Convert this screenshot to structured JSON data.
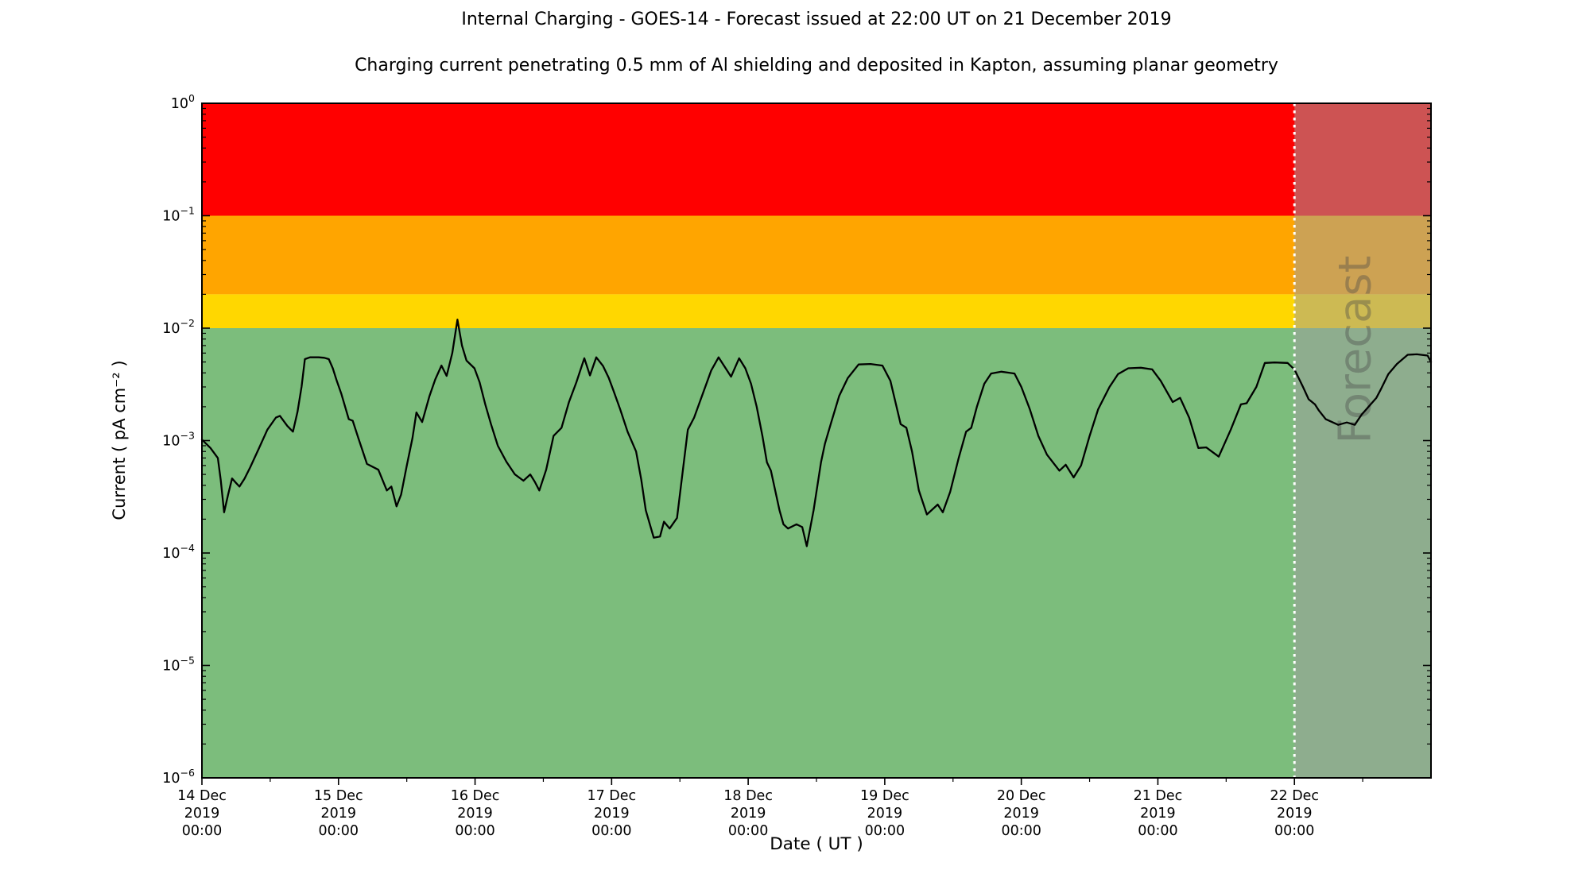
{
  "title": "Internal Charging - GOES-14 - Forecast issued at 22:00 UT on 21 December 2019",
  "subtitle": "Charging current penetrating 0.5 mm of Al shielding and deposited in Kapton, assuming planar geometry",
  "chart_data": {
    "type": "line",
    "title": "Internal Charging - GOES-14 - Forecast issued at 22:00 UT on 21 December 2019",
    "subtitle": "Charging current penetrating 0.5 mm of Al shielding and deposited in Kapton, assuming planar geometry",
    "xlabel": "Date ( UT )",
    "ylabel": "Current ( pA cm⁻² )",
    "y_scale": "log",
    "ylim": [
      1e-06,
      1
    ],
    "y_tick_exponents": [
      0,
      -1,
      -2,
      -3,
      -4,
      -5,
      -6
    ],
    "x_range_hours": 216,
    "x_start": "14 Dec 2019 00:00 UT",
    "x_end": "23 Dec 2019 00:00 UT",
    "x_minor_tick_hours": 12,
    "grid": false,
    "x_ticks": [
      {
        "hours": 0,
        "lines": [
          "14 Dec",
          "2019",
          "00:00"
        ]
      },
      {
        "hours": 24,
        "lines": [
          "15 Dec",
          "2019",
          "00:00"
        ]
      },
      {
        "hours": 48,
        "lines": [
          "16 Dec",
          "2019",
          "00:00"
        ]
      },
      {
        "hours": 72,
        "lines": [
          "17 Dec",
          "2019",
          "00:00"
        ]
      },
      {
        "hours": 96,
        "lines": [
          "18 Dec",
          "2019",
          "00:00"
        ]
      },
      {
        "hours": 120,
        "lines": [
          "19 Dec",
          "2019",
          "00:00"
        ]
      },
      {
        "hours": 144,
        "lines": [
          "20 Dec",
          "2019",
          "00:00"
        ]
      },
      {
        "hours": 168,
        "lines": [
          "21 Dec",
          "2019",
          "00:00"
        ]
      },
      {
        "hours": 192,
        "lines": [
          "22 Dec",
          "2019",
          "00:00"
        ]
      }
    ],
    "bands": [
      {
        "name": "red",
        "color": "#ff0000",
        "from": 0.1,
        "to": 1.0
      },
      {
        "name": "orange",
        "color": "#ffa500",
        "from": 0.02,
        "to": 0.1
      },
      {
        "name": "yellow",
        "color": "#ffd700",
        "from": 0.01,
        "to": 0.02
      },
      {
        "name": "green",
        "color": "#7cbd7c",
        "from": 1e-06,
        "to": 0.01
      }
    ],
    "forecast": {
      "start_hours": 192,
      "watermark_text": "Forecast",
      "watermark_color": "rgba(70,70,70,0.38)",
      "overlay_color": "rgba(160,160,160,0.52)",
      "boundary_line_color": "#ffffff"
    },
    "series": [
      {
        "name": "charging-current",
        "color": "#000000",
        "points_hours_value": [
          [
            0,
            0.00102
          ],
          [
            1.5,
            0.00086
          ],
          [
            2.8,
            0.0007
          ],
          [
            3.3,
            0.00045
          ],
          [
            3.9,
            0.00023
          ],
          [
            4.6,
            0.00033
          ],
          [
            5.3,
            0.00046
          ],
          [
            6,
            0.00042
          ],
          [
            6.6,
            0.00039
          ],
          [
            7.5,
            0.00046
          ],
          [
            8.5,
            0.00058
          ],
          [
            10,
            0.00085
          ],
          [
            11.5,
            0.00125
          ],
          [
            13,
            0.0016
          ],
          [
            13.7,
            0.00166
          ],
          [
            15,
            0.00135
          ],
          [
            16,
            0.0012
          ],
          [
            16.8,
            0.0018
          ],
          [
            17.5,
            0.003
          ],
          [
            18.1,
            0.0053
          ],
          [
            19,
            0.0055
          ],
          [
            20.5,
            0.0055
          ],
          [
            21.5,
            0.00545
          ],
          [
            22.3,
            0.0053
          ],
          [
            23,
            0.0044
          ],
          [
            23.7,
            0.0034
          ],
          [
            24.5,
            0.0026
          ],
          [
            25.8,
            0.00155
          ],
          [
            26.5,
            0.0015
          ],
          [
            27.5,
            0.00105
          ],
          [
            29,
            0.00062
          ],
          [
            31,
            0.00055
          ],
          [
            32.5,
            0.00036
          ],
          [
            33.3,
            0.00039
          ],
          [
            34.2,
            0.00026
          ],
          [
            35,
            0.00033
          ],
          [
            36,
            0.0006
          ],
          [
            37,
            0.00105
          ],
          [
            37.7,
            0.00178
          ],
          [
            38.7,
            0.00146
          ],
          [
            40,
            0.0025
          ],
          [
            41,
            0.0035
          ],
          [
            42.1,
            0.00465
          ],
          [
            43,
            0.00376
          ],
          [
            44,
            0.006
          ],
          [
            44.9,
            0.0119
          ],
          [
            45.7,
            0.007
          ],
          [
            46.5,
            0.00515
          ],
          [
            47.9,
            0.0044
          ],
          [
            48.8,
            0.0033
          ],
          [
            49.8,
            0.0021
          ],
          [
            50.8,
            0.0014
          ],
          [
            52,
            0.0009
          ],
          [
            53.5,
            0.00065
          ],
          [
            55,
            0.0005
          ],
          [
            56.5,
            0.00044
          ],
          [
            57.7,
            0.0005
          ],
          [
            58.5,
            0.00043
          ],
          [
            59.3,
            0.00036
          ],
          [
            60.5,
            0.00055
          ],
          [
            61.8,
            0.0011
          ],
          [
            63.2,
            0.0013
          ],
          [
            64.5,
            0.0022
          ],
          [
            65.8,
            0.0033
          ],
          [
            67.2,
            0.0054
          ],
          [
            68.2,
            0.0038
          ],
          [
            69.3,
            0.0055
          ],
          [
            70.5,
            0.0046
          ],
          [
            71.5,
            0.0036
          ],
          [
            72.3,
            0.0028
          ],
          [
            73.5,
            0.0019
          ],
          [
            74.8,
            0.0012
          ],
          [
            76.3,
            0.0008
          ],
          [
            77.2,
            0.00045
          ],
          [
            78,
            0.00024
          ],
          [
            79.4,
            0.000137
          ],
          [
            80.5,
            0.00014
          ],
          [
            81.2,
            0.00019
          ],
          [
            82.2,
            0.000165
          ],
          [
            83.5,
            0.000205
          ],
          [
            85.4,
            0.00125
          ],
          [
            86.5,
            0.0016
          ],
          [
            88,
            0.0026
          ],
          [
            89.5,
            0.0042
          ],
          [
            90.8,
            0.0055
          ],
          [
            93,
            0.0037
          ],
          [
            94.4,
            0.0054
          ],
          [
            95.5,
            0.0044
          ],
          [
            96.5,
            0.0032
          ],
          [
            97.5,
            0.002
          ],
          [
            98.5,
            0.0011
          ],
          [
            99.3,
            0.00064
          ],
          [
            100,
            0.00054
          ],
          [
            101.5,
            0.00024
          ],
          [
            102.2,
            0.00018
          ],
          [
            103,
            0.000165
          ],
          [
            104.5,
            0.00018
          ],
          [
            105.5,
            0.00017
          ],
          [
            106.3,
            0.000115
          ],
          [
            107.5,
            0.00024
          ],
          [
            108.8,
            0.00064
          ],
          [
            109.5,
            0.00094
          ],
          [
            110.5,
            0.0014
          ],
          [
            112,
            0.0025
          ],
          [
            113.5,
            0.0036
          ],
          [
            115.4,
            0.00475
          ],
          [
            117.5,
            0.0048
          ],
          [
            119.6,
            0.00465
          ],
          [
            121,
            0.0034
          ],
          [
            122.8,
            0.0014
          ],
          [
            123.8,
            0.0013
          ],
          [
            124.8,
            0.0008
          ],
          [
            126,
            0.00036
          ],
          [
            127.4,
            0.00022
          ],
          [
            129.3,
            0.00027
          ],
          [
            130.2,
            0.00023
          ],
          [
            131.5,
            0.00035
          ],
          [
            133,
            0.0007
          ],
          [
            134.3,
            0.0012
          ],
          [
            135.2,
            0.0013
          ],
          [
            136.2,
            0.002
          ],
          [
            137.5,
            0.0032
          ],
          [
            138.7,
            0.00395
          ],
          [
            140.5,
            0.0041
          ],
          [
            142.8,
            0.00395
          ],
          [
            144,
            0.003
          ],
          [
            145.5,
            0.0019
          ],
          [
            147,
            0.0011
          ],
          [
            148.5,
            0.00075
          ],
          [
            150.7,
            0.00054
          ],
          [
            151.8,
            0.00061
          ],
          [
            153.2,
            0.00047
          ],
          [
            154.5,
            0.0006
          ],
          [
            156,
            0.0011
          ],
          [
            157.5,
            0.0019
          ],
          [
            159.5,
            0.003
          ],
          [
            161,
            0.0039
          ],
          [
            162.8,
            0.0044
          ],
          [
            165,
            0.00445
          ],
          [
            167,
            0.0043
          ],
          [
            168.5,
            0.0034
          ],
          [
            170.6,
            0.0022
          ],
          [
            171.9,
            0.0024
          ],
          [
            173.5,
            0.0016
          ],
          [
            175.1,
            0.00086
          ],
          [
            176.5,
            0.00087
          ],
          [
            178.7,
            0.00072
          ],
          [
            180.8,
            0.00125
          ],
          [
            182.6,
            0.0021
          ],
          [
            183.6,
            0.00215
          ],
          [
            185.3,
            0.003
          ],
          [
            186.8,
            0.0049
          ],
          [
            188.5,
            0.00495
          ],
          [
            190.8,
            0.0049
          ],
          [
            192,
            0.0043
          ],
          [
            193.5,
            0.003
          ],
          [
            194.5,
            0.00233
          ],
          [
            195.6,
            0.0021
          ],
          [
            196.3,
            0.00185
          ],
          [
            197.5,
            0.00155
          ],
          [
            199.7,
            0.00138
          ],
          [
            201.2,
            0.00145
          ],
          [
            202.6,
            0.00138
          ],
          [
            203.8,
            0.0017
          ],
          [
            206.4,
            0.0024
          ],
          [
            207.1,
            0.0028
          ],
          [
            208.5,
            0.0039
          ],
          [
            210,
            0.0048
          ],
          [
            211.9,
            0.0058
          ],
          [
            213.5,
            0.00585
          ],
          [
            215.4,
            0.0057
          ],
          [
            216,
            0.005
          ]
        ]
      }
    ]
  }
}
